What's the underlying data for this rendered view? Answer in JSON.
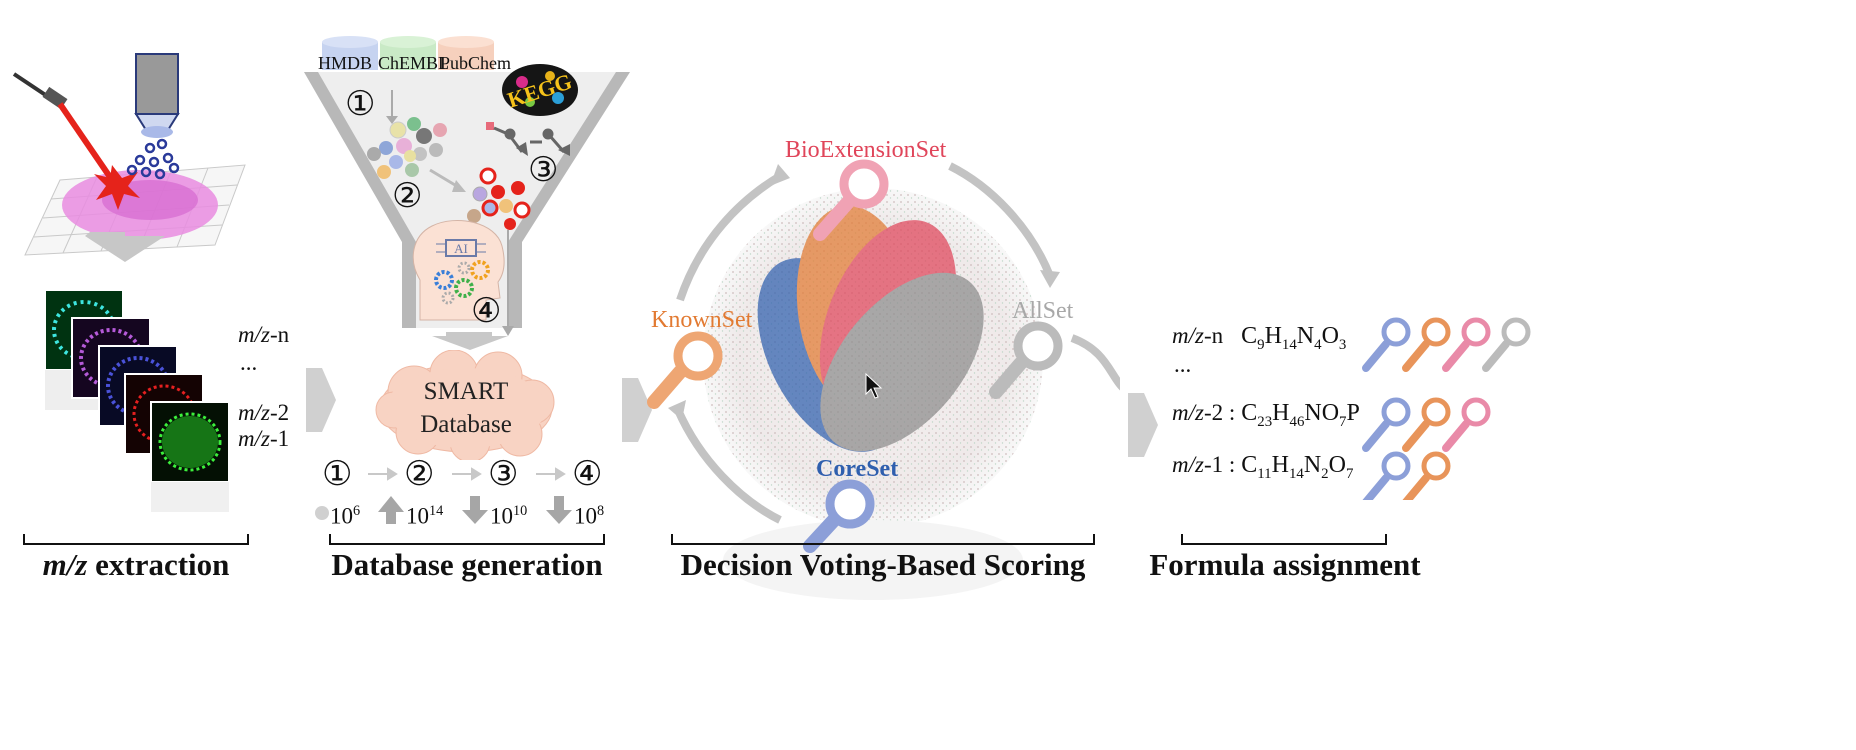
{
  "stages": {
    "extraction": "m/z extraction",
    "database": "Database generation",
    "scoring": "Decision Voting-Based Scoring",
    "formula": "Formula assignment"
  },
  "extraction": {
    "mz_labels": [
      "m/z-n",
      "...",
      "m/z-2",
      "m/z-1"
    ]
  },
  "databases": [
    "HMDB",
    "ChEMBL",
    "PubChem"
  ],
  "kegg_label": "KEGG",
  "funnel_steps": [
    "①",
    "②",
    "③",
    "④"
  ],
  "ai_label": "AI",
  "cloud": {
    "line1": "SMART",
    "line2": "Database"
  },
  "step_flow": {
    "steps": [
      "①",
      "②",
      "③",
      "④"
    ],
    "sizes": [
      {
        "base": "10",
        "exp": "6",
        "trend": "start"
      },
      {
        "base": "10",
        "exp": "14",
        "trend": "up"
      },
      {
        "base": "10",
        "exp": "10",
        "trend": "down"
      },
      {
        "base": "10",
        "exp": "8",
        "trend": "down"
      }
    ]
  },
  "sets": {
    "bio": "BioExtensionSet",
    "known": "KnownSet",
    "all": "AllSet",
    "core": "CoreSet"
  },
  "set_colors": {
    "bio": "#e0455a",
    "known": "#e27a32",
    "all": "#a8a8a8",
    "core": "#2f5fae",
    "magnifier_blue": "#8c9fd8",
    "magnifier_orange": "#e8945a",
    "magnifier_pink": "#e98aa8",
    "magnifier_gray": "#bbbbbb"
  },
  "assignments": [
    {
      "mz": "m/z-n",
      "sep": "",
      "formula_html": "C<sub>9</sub>H<sub>14</sub>N<sub>4</sub>O<sub>3</sub>",
      "formula": "C9H14N4O3",
      "votes": [
        "blue",
        "orange",
        "pink",
        "gray"
      ]
    },
    {
      "mz": "...",
      "sep": "",
      "formula": "",
      "votes": []
    },
    {
      "mz": "m/z-2",
      "sep": " : ",
      "formula": "C23H46NO7P",
      "votes": [
        "blue",
        "orange",
        "pink"
      ]
    },
    {
      "mz": "m/z-1",
      "sep": " : ",
      "formula": "C11H14N2O7",
      "votes": [
        "blue",
        "orange"
      ]
    }
  ]
}
